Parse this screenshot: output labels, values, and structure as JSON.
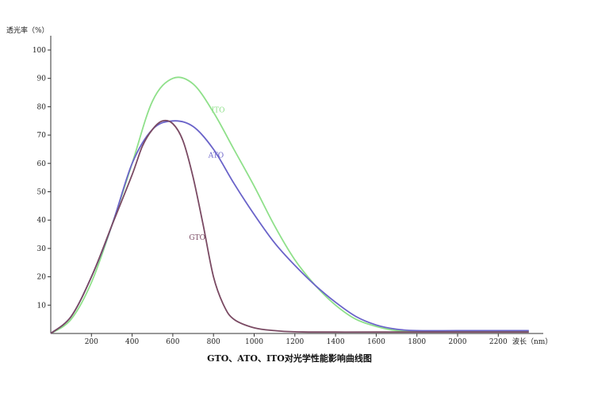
{
  "chart_data": {
    "type": "line",
    "caption": "GTO、ATO、ITO对光学性能影响曲线图",
    "ylabel": "透光率（%）",
    "xlabel": "波长（nm）",
    "xlim": [
      0,
      2350
    ],
    "ylim": [
      0,
      100
    ],
    "xticks": [
      200,
      400,
      600,
      800,
      1000,
      1200,
      1400,
      1600,
      1800,
      2000,
      2200
    ],
    "yticks": [
      10,
      20,
      30,
      40,
      50,
      60,
      70,
      80,
      90,
      100
    ],
    "grid": false,
    "series": [
      {
        "name": "ITO",
        "color": "#8fe08a",
        "label_at": [
          790,
          78
        ],
        "x": [
          0,
          100,
          200,
          300,
          400,
          500,
          600,
          700,
          800,
          900,
          1000,
          1100,
          1200,
          1300,
          1400,
          1500,
          1600,
          1700,
          1800,
          2000,
          2350
        ],
        "y": [
          0,
          5,
          18,
          38,
          60,
          82,
          90,
          88,
          78,
          65,
          52,
          38,
          26,
          17,
          10,
          5,
          2.5,
          1,
          0.8,
          0.8,
          0.8
        ]
      },
      {
        "name": "ATO",
        "color": "#6a63c9",
        "label_at": [
          775,
          62
        ],
        "x": [
          0,
          100,
          200,
          300,
          400,
          500,
          600,
          700,
          800,
          900,
          1000,
          1100,
          1200,
          1300,
          1400,
          1500,
          1600,
          1700,
          1800,
          2000,
          2200,
          2350
        ],
        "y": [
          0,
          6,
          20,
          38,
          60,
          72,
          75,
          73,
          65,
          53,
          42,
          32,
          24,
          17,
          11,
          6,
          3,
          1.5,
          1,
          1,
          1,
          1
        ]
      },
      {
        "name": "GTO",
        "color": "#7a4a63",
        "label_at": [
          680,
          33
        ],
        "x": [
          0,
          100,
          200,
          300,
          400,
          450,
          500,
          550,
          600,
          650,
          700,
          750,
          800,
          850,
          900,
          1000,
          1100,
          1200,
          1400,
          1600,
          2350
        ],
        "y": [
          0,
          6,
          20,
          38,
          56,
          66,
          72,
          75,
          74,
          68,
          55,
          38,
          20,
          10,
          5,
          2,
          1,
          0.6,
          0.5,
          0.5,
          0.5
        ]
      }
    ]
  }
}
